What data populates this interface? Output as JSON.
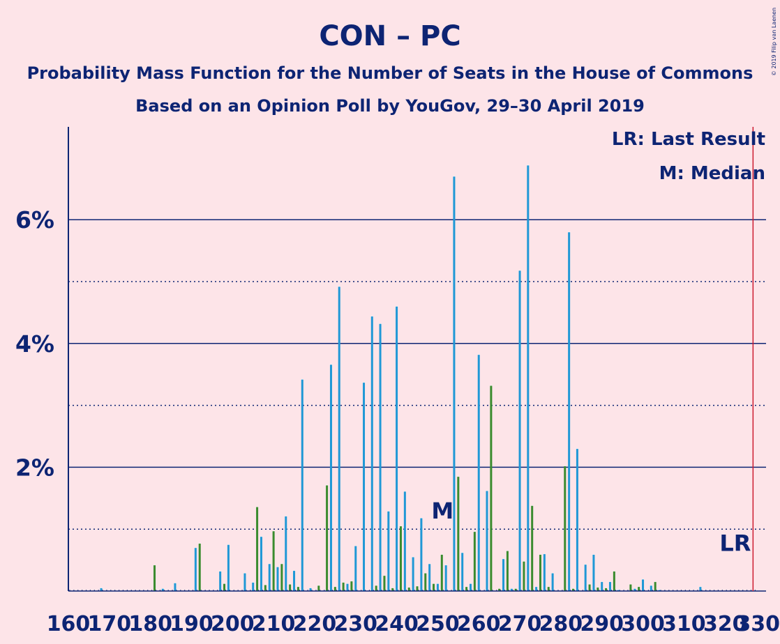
{
  "chart_data": {
    "type": "bar",
    "title": "CON – PC",
    "subtitle": "Probability Mass Function for the Number of Seats in the House of Commons",
    "subtitle2": "Based on an Opinion Poll by YouGov, 29–30 April 2019",
    "copyright": "© 2019 Filip van Laenen",
    "legend": {
      "last_result": "LR: Last Result",
      "median": "M: Median",
      "placement": "top-right"
    },
    "y_ticks": [
      "2%",
      "4%",
      "6%"
    ],
    "x_ticks": [
      "160",
      "170",
      "180",
      "190",
      "200",
      "210",
      "220",
      "230",
      "240",
      "250",
      "260",
      "270",
      "280",
      "290",
      "300",
      "310",
      "320",
      "330"
    ],
    "xlim": [
      160,
      330
    ],
    "ylim": [
      0,
      7.5
    ],
    "y_unit": "%",
    "gridlines_solid": [
      2,
      4,
      6
    ],
    "gridlines_dotted": [
      1,
      3,
      5
    ],
    "median": {
      "seat": 251,
      "label": "M"
    },
    "last_result": {
      "seat": 327,
      "label": "LR"
    },
    "colors": {
      "background": "#fde4e8",
      "text": "#0d2473",
      "bar_primary": "#1f98d6",
      "bar_secondary": "#3a8b2e",
      "last_result_line": "#cc1a30"
    },
    "bars": [
      {
        "x": 168,
        "y": 0.05,
        "c": "b"
      },
      {
        "x": 181,
        "y": 0.42,
        "c": "g"
      },
      {
        "x": 183,
        "y": 0.04,
        "c": "b"
      },
      {
        "x": 186,
        "y": 0.13,
        "c": "b"
      },
      {
        "x": 191,
        "y": 0.7,
        "c": "b"
      },
      {
        "x": 192,
        "y": 0.77,
        "c": "g"
      },
      {
        "x": 197,
        "y": 0.32,
        "c": "b"
      },
      {
        "x": 198,
        "y": 0.12,
        "c": "g"
      },
      {
        "x": 199,
        "y": 0.75,
        "c": "b"
      },
      {
        "x": 203,
        "y": 0.29,
        "c": "b"
      },
      {
        "x": 205,
        "y": 0.14,
        "c": "b"
      },
      {
        "x": 206,
        "y": 1.36,
        "c": "g"
      },
      {
        "x": 207,
        "y": 0.88,
        "c": "b"
      },
      {
        "x": 208,
        "y": 0.1,
        "c": "g"
      },
      {
        "x": 209,
        "y": 0.44,
        "c": "b"
      },
      {
        "x": 210,
        "y": 0.97,
        "c": "g"
      },
      {
        "x": 211,
        "y": 0.39,
        "c": "b"
      },
      {
        "x": 212,
        "y": 0.44,
        "c": "g"
      },
      {
        "x": 213,
        "y": 1.21,
        "c": "b"
      },
      {
        "x": 214,
        "y": 0.11,
        "c": "g"
      },
      {
        "x": 215,
        "y": 0.33,
        "c": "b"
      },
      {
        "x": 216,
        "y": 0.07,
        "c": "g"
      },
      {
        "x": 217,
        "y": 3.42,
        "c": "b"
      },
      {
        "x": 219,
        "y": 0.05,
        "c": "b"
      },
      {
        "x": 221,
        "y": 0.09,
        "c": "g"
      },
      {
        "x": 223,
        "y": 1.71,
        "c": "g"
      },
      {
        "x": 224,
        "y": 3.66,
        "c": "b"
      },
      {
        "x": 225,
        "y": 0.07,
        "c": "g"
      },
      {
        "x": 226,
        "y": 4.92,
        "c": "b"
      },
      {
        "x": 227,
        "y": 0.14,
        "c": "g"
      },
      {
        "x": 228,
        "y": 0.12,
        "c": "b"
      },
      {
        "x": 229,
        "y": 0.16,
        "c": "g"
      },
      {
        "x": 230,
        "y": 0.73,
        "c": "b"
      },
      {
        "x": 232,
        "y": 3.37,
        "c": "b"
      },
      {
        "x": 234,
        "y": 4.44,
        "c": "b"
      },
      {
        "x": 235,
        "y": 0.09,
        "c": "g"
      },
      {
        "x": 236,
        "y": 4.32,
        "c": "b"
      },
      {
        "x": 237,
        "y": 0.25,
        "c": "g"
      },
      {
        "x": 238,
        "y": 1.29,
        "c": "b"
      },
      {
        "x": 239,
        "y": 0.05,
        "c": "g"
      },
      {
        "x": 240,
        "y": 4.6,
        "c": "b"
      },
      {
        "x": 241,
        "y": 1.05,
        "c": "g"
      },
      {
        "x": 242,
        "y": 1.61,
        "c": "b"
      },
      {
        "x": 243,
        "y": 0.06,
        "c": "g"
      },
      {
        "x": 244,
        "y": 0.55,
        "c": "b"
      },
      {
        "x": 245,
        "y": 0.08,
        "c": "g"
      },
      {
        "x": 246,
        "y": 1.18,
        "c": "b"
      },
      {
        "x": 247,
        "y": 0.29,
        "c": "g"
      },
      {
        "x": 248,
        "y": 0.44,
        "c": "b"
      },
      {
        "x": 249,
        "y": 0.12,
        "c": "g"
      },
      {
        "x": 250,
        "y": 0.12,
        "c": "b"
      },
      {
        "x": 251,
        "y": 0.59,
        "c": "g"
      },
      {
        "x": 252,
        "y": 0.42,
        "c": "b"
      },
      {
        "x": 254,
        "y": 6.7,
        "c": "b"
      },
      {
        "x": 255,
        "y": 1.85,
        "c": "g"
      },
      {
        "x": 256,
        "y": 0.62,
        "c": "b"
      },
      {
        "x": 257,
        "y": 0.07,
        "c": "g"
      },
      {
        "x": 258,
        "y": 0.12,
        "c": "b"
      },
      {
        "x": 259,
        "y": 0.96,
        "c": "g"
      },
      {
        "x": 260,
        "y": 3.82,
        "c": "b"
      },
      {
        "x": 262,
        "y": 1.62,
        "c": "b"
      },
      {
        "x": 263,
        "y": 3.32,
        "c": "g"
      },
      {
        "x": 265,
        "y": 0.04,
        "c": "g"
      },
      {
        "x": 266,
        "y": 0.52,
        "c": "b"
      },
      {
        "x": 267,
        "y": 0.65,
        "c": "g"
      },
      {
        "x": 268,
        "y": 0.04,
        "c": "b"
      },
      {
        "x": 269,
        "y": 0.04,
        "c": "g"
      },
      {
        "x": 270,
        "y": 5.18,
        "c": "b"
      },
      {
        "x": 271,
        "y": 0.48,
        "c": "g"
      },
      {
        "x": 272,
        "y": 6.88,
        "c": "b"
      },
      {
        "x": 273,
        "y": 1.38,
        "c": "g"
      },
      {
        "x": 274,
        "y": 0.07,
        "c": "b"
      },
      {
        "x": 275,
        "y": 0.59,
        "c": "g"
      },
      {
        "x": 276,
        "y": 0.6,
        "c": "b"
      },
      {
        "x": 277,
        "y": 0.07,
        "c": "g"
      },
      {
        "x": 278,
        "y": 0.29,
        "c": "b"
      },
      {
        "x": 281,
        "y": 2.02,
        "c": "g"
      },
      {
        "x": 282,
        "y": 5.8,
        "c": "b"
      },
      {
        "x": 283,
        "y": 0.04,
        "c": "g"
      },
      {
        "x": 284,
        "y": 2.3,
        "c": "b"
      },
      {
        "x": 286,
        "y": 0.43,
        "c": "b"
      },
      {
        "x": 287,
        "y": 0.11,
        "c": "g"
      },
      {
        "x": 288,
        "y": 0.59,
        "c": "b"
      },
      {
        "x": 289,
        "y": 0.06,
        "c": "g"
      },
      {
        "x": 290,
        "y": 0.15,
        "c": "b"
      },
      {
        "x": 291,
        "y": 0.05,
        "c": "g"
      },
      {
        "x": 292,
        "y": 0.15,
        "c": "b"
      },
      {
        "x": 293,
        "y": 0.32,
        "c": "g"
      },
      {
        "x": 294,
        "y": 0.02,
        "c": "b"
      },
      {
        "x": 297,
        "y": 0.11,
        "c": "g"
      },
      {
        "x": 298,
        "y": 0.04,
        "c": "b"
      },
      {
        "x": 299,
        "y": 0.07,
        "c": "g"
      },
      {
        "x": 300,
        "y": 0.19,
        "c": "b"
      },
      {
        "x": 302,
        "y": 0.09,
        "c": "b"
      },
      {
        "x": 303,
        "y": 0.15,
        "c": "g"
      },
      {
        "x": 304,
        "y": 0.02,
        "c": "b"
      },
      {
        "x": 314,
        "y": 0.07,
        "c": "b"
      }
    ]
  }
}
